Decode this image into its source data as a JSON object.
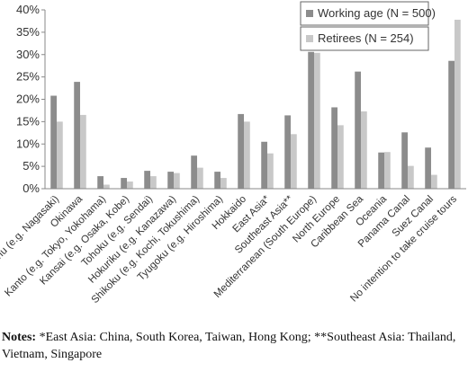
{
  "chart_data": {
    "type": "bar",
    "categories": [
      "Kyushu (e.g. Nagasaki)",
      "Okinawa",
      "Kanto (e.g. Tokyo, Yokohama)",
      "Kansai (e.g. Osaka, Kobe)",
      "Tohoku (e.g. Sendai)",
      "Hokuriku (e.g. Kanazawa)",
      "Shikoku (e.g. Kochi, Tokushima)",
      "Tyugoku (e.g. Hiroshima)",
      "Hokkaido",
      "East Asia*",
      "Southeast Asia**",
      "Mediterranean (South Europe)",
      "North Europe",
      "Caribbean Sea",
      "Oceania",
      "Panama Canal",
      "Suez Canal",
      "No intention to take cruise tours"
    ],
    "series": [
      {
        "name": "Working age (N = 500)",
        "color": "#8c8c8c",
        "values": [
          20.8,
          23.9,
          2.8,
          2.4,
          4.0,
          3.8,
          7.4,
          3.8,
          16.7,
          10.5,
          16.4,
          30.6,
          18.2,
          26.2,
          8.1,
          12.6,
          9.2,
          28.6
        ]
      },
      {
        "name": "Retirees (N = 254)",
        "color": "#c8c8c8",
        "values": [
          15.0,
          16.5,
          0.9,
          1.6,
          2.8,
          3.5,
          4.7,
          2.4,
          15.0,
          7.9,
          12.2,
          30.4,
          14.2,
          17.3,
          8.2,
          5.1,
          3.1,
          37.8
        ]
      }
    ],
    "ylim": [
      0,
      40
    ],
    "yticks": [
      {
        "value": 0,
        "label": "0%"
      },
      {
        "value": 5,
        "label": "5%"
      },
      {
        "value": 10,
        "label": "10%"
      },
      {
        "value": 15,
        "label": "15%"
      },
      {
        "value": 20,
        "label": "20%"
      },
      {
        "value": 25,
        "label": "25%"
      },
      {
        "value": 30,
        "label": "30%"
      },
      {
        "value": 35,
        "label": "35%"
      },
      {
        "value": 40,
        "label": "40%"
      }
    ],
    "grid": false,
    "legend": "top-right"
  },
  "notes": {
    "label": "Notes:",
    "text": "*East Asia: China, South Korea, Taiwan, Hong Kong; **Southeast Asia: Thailand, Vietnam, Singapore"
  }
}
